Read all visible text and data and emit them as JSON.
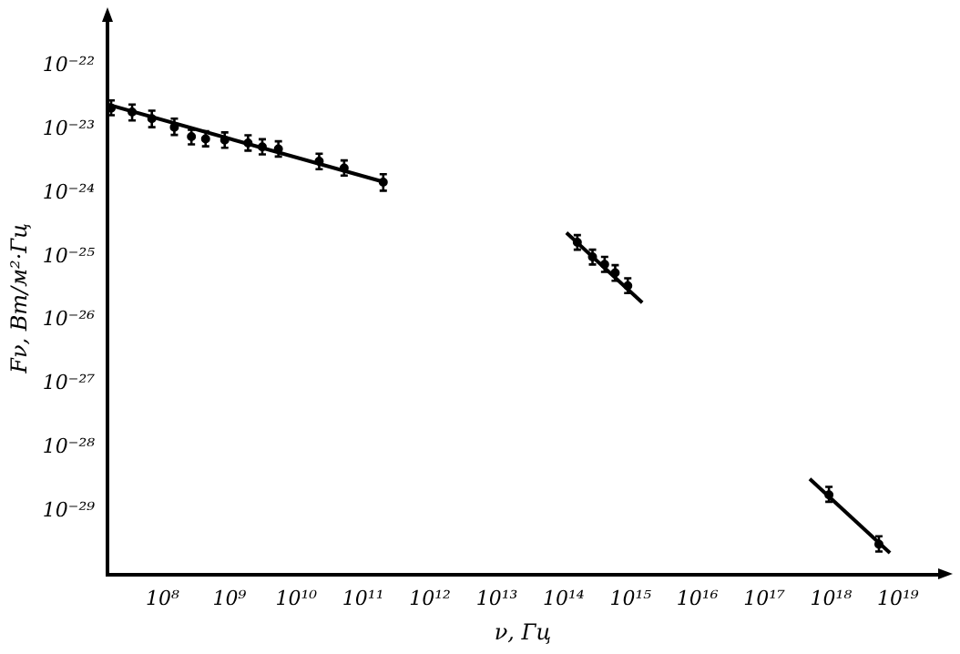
{
  "chart_data": {
    "type": "scatter",
    "xlabel": "ν, Гц",
    "ylabel": "Fν, Вт/м²·Гц",
    "log": "xy",
    "grid": false,
    "legend": false,
    "marker": "circle",
    "xlim": [
      15000000.0,
      4e+19
    ],
    "ylim": [
      1e-30,
      5e-22
    ],
    "xticks": [
      {
        "value": 100000000.0,
        "label": "10⁸"
      },
      {
        "value": 1000000000.0,
        "label": "10⁹"
      },
      {
        "value": 10000000000.0,
        "label": "10¹⁰"
      },
      {
        "value": 100000000000.0,
        "label": "10¹¹"
      },
      {
        "value": 1000000000000.0,
        "label": "10¹²"
      },
      {
        "value": 10000000000000.0,
        "label": "10¹³"
      },
      {
        "value": 100000000000000.0,
        "label": "10¹⁴"
      },
      {
        "value": 1000000000000000.0,
        "label": "10¹⁵"
      },
      {
        "value": 1e+16,
        "label": "10¹⁶"
      },
      {
        "value": 1e+17,
        "label": "10¹⁷"
      },
      {
        "value": 1e+18,
        "label": "10¹⁸"
      },
      {
        "value": 1e+19,
        "label": "10¹⁹"
      }
    ],
    "yticks": [
      {
        "value": 1e-29,
        "label": "10⁻²⁹"
      },
      {
        "value": 1e-28,
        "label": "10⁻²⁸"
      },
      {
        "value": 1e-27,
        "label": "10⁻²⁷"
      },
      {
        "value": 1e-26,
        "label": "10⁻²⁶"
      },
      {
        "value": 1e-25,
        "label": "10⁻²⁵"
      },
      {
        "value": 1e-24,
        "label": "10⁻²⁴"
      },
      {
        "value": 1e-23,
        "label": "10⁻²³"
      },
      {
        "value": 1e-22,
        "label": "10⁻²²"
      }
    ],
    "series": [
      {
        "color": "#000000",
        "x": [
          17000000.0,
          35000000.0,
          69000000.0,
          150000000.0,
          270000000.0,
          440000000.0,
          850000000.0,
          1900000000.0,
          3100000000.0,
          5400000000.0,
          22000000000.0,
          52000000000.0,
          200000000000.0,
          160000000000000.0,
          270000000000000.0,
          410000000000000.0,
          590000000000000.0,
          910000000000000.0,
          9.3e+17,
          5.2e+18
        ],
        "values": [
          2.2e-23,
          1.9e-23,
          1.5e-23,
          1.1e-23,
          7.8e-24,
          7.2e-24,
          6.9e-24,
          6.2e-24,
          5.4e-24,
          5e-24,
          3.2e-24,
          2.5e-24,
          1.5e-24,
          1.7e-25,
          1e-25,
          7.6e-26,
          5.6e-26,
          3.5e-26,
          1.8e-29,
          3e-30
        ],
        "errors": [
          [
            1.7e-23,
            2.9e-23
          ],
          [
            1.4e-23,
            2.5e-23
          ],
          [
            1.1e-23,
            2e-23
          ],
          [
            8.3e-24,
            1.5e-23
          ],
          [
            5.9e-24,
            1e-23
          ],
          [
            5.5e-24,
            9.5e-24
          ],
          [
            5.2e-24,
            9.1e-24
          ],
          [
            4.7e-24,
            8.2e-24
          ],
          [
            4.1e-24,
            7.1e-24
          ],
          [
            3.8e-24,
            6.6e-24
          ],
          [
            2.4e-24,
            4.2e-24
          ],
          [
            1.9e-24,
            3.3e-24
          ],
          [
            1.1e-24,
            2e-24
          ],
          [
            1.3e-25,
            2.2e-25
          ],
          [
            7.6e-26,
            1.3e-25
          ],
          [
            5.8e-26,
            1e-25
          ],
          [
            4.2e-26,
            7.4e-26
          ],
          [
            2.7e-26,
            4.6e-26
          ],
          [
            1.4e-29,
            2.4e-29
          ],
          [
            2.3e-30,
            4e-30
          ]
        ]
      },
      {
        "type": "line",
        "marker": "none",
        "color": "#000000",
        "x": [
          15000000.0,
          210000000000.0
        ],
        "values": [
          2.5e-23,
          1.5e-24
        ]
      },
      {
        "type": "line",
        "marker": "none",
        "color": "#000000",
        "x": [
          110000000000000.0,
          1500000000000000.0
        ],
        "values": [
          2.4e-25,
          1.9e-26
        ]
      },
      {
        "type": "line",
        "marker": "none",
        "color": "#000000",
        "x": [
          4.8e+17,
          7.6e+18
        ],
        "values": [
          3.2e-29,
          2.2e-30
        ]
      }
    ]
  }
}
